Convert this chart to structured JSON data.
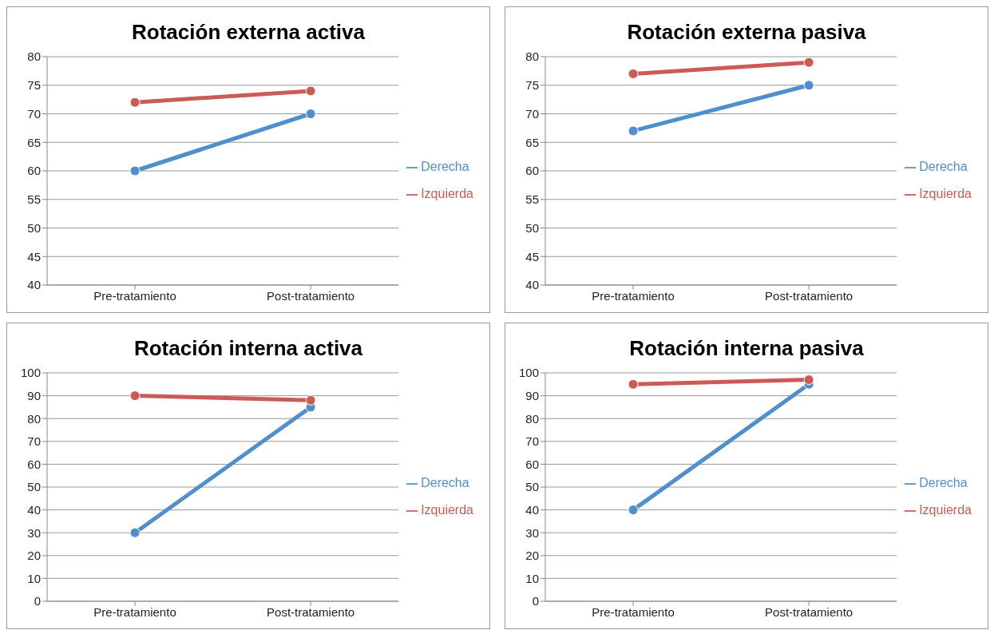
{
  "chart_data": [
    {
      "type": "line",
      "title": "Rotación externa activa",
      "categories": [
        "Pre-tratamiento",
        "Post-tratamiento"
      ],
      "series": [
        {
          "name": "Derecha",
          "color": "#4f8fcc",
          "values": [
            60,
            70
          ]
        },
        {
          "name": "Izquierda",
          "color": "#cc5a55",
          "values": [
            72,
            74
          ]
        }
      ],
      "ylim": [
        40,
        80
      ],
      "yticks": [
        40,
        45,
        50,
        55,
        60,
        65,
        70,
        75,
        80
      ],
      "grid": "y",
      "legend": "right",
      "marker": "circle"
    },
    {
      "type": "line",
      "title": "Rotación externa pasiva",
      "categories": [
        "Pre-tratamiento",
        "Post-tratamiento"
      ],
      "series": [
        {
          "name": "Derecha",
          "color": "#4f8fcc",
          "values": [
            67,
            75
          ]
        },
        {
          "name": "Izquierda",
          "color": "#cc5a55",
          "values": [
            77,
            79
          ]
        }
      ],
      "ylim": [
        40,
        80
      ],
      "yticks": [
        40,
        45,
        50,
        55,
        60,
        65,
        70,
        75,
        80
      ],
      "grid": "y",
      "legend": "right",
      "marker": "circle"
    },
    {
      "type": "line",
      "title": "Rotación interna activa",
      "categories": [
        "Pre-tratamiento",
        "Post-tratamiento"
      ],
      "series": [
        {
          "name": "Derecha",
          "color": "#4f8fcc",
          "values": [
            30,
            85
          ]
        },
        {
          "name": "Izquierda",
          "color": "#cc5a55",
          "values": [
            90,
            88
          ]
        }
      ],
      "ylim": [
        0,
        100
      ],
      "yticks": [
        0,
        10,
        20,
        30,
        40,
        50,
        60,
        70,
        80,
        90,
        100
      ],
      "grid": "y",
      "legend": "right",
      "marker": "circle"
    },
    {
      "type": "line",
      "title": "Rotación interna pasiva",
      "categories": [
        "Pre-tratamiento",
        "Post-tratamiento"
      ],
      "series": [
        {
          "name": "Derecha",
          "color": "#4f8fcc",
          "values": [
            40,
            95
          ]
        },
        {
          "name": "Izquierda",
          "color": "#cc5a55",
          "values": [
            95,
            97
          ]
        }
      ],
      "ylim": [
        0,
        100
      ],
      "yticks": [
        0,
        10,
        20,
        30,
        40,
        50,
        60,
        70,
        80,
        90,
        100
      ],
      "grid": "y",
      "legend": "right",
      "marker": "circle"
    }
  ]
}
